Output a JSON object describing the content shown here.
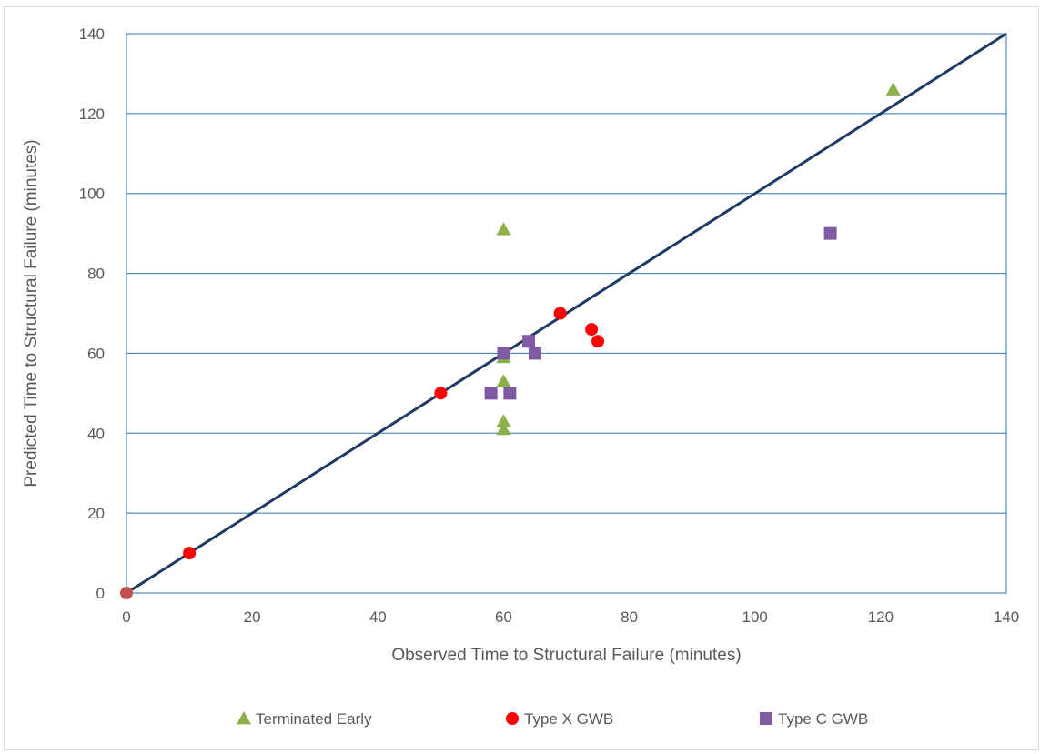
{
  "chart_data": {
    "type": "scatter",
    "title": "",
    "xlabel": "Observed Time to Structural Failure (minutes)",
    "ylabel": "Predicted Time to Structural Failure (minutes)",
    "xlim": [
      0,
      140
    ],
    "ylim": [
      0,
      140
    ],
    "x_ticks": [
      "0",
      "20",
      "40",
      "60",
      "80",
      "100",
      "120",
      "140"
    ],
    "y_ticks": [
      "0",
      "20",
      "40",
      "60",
      "80",
      "100",
      "120",
      "140"
    ],
    "grid": "horizontal",
    "legend_position": "bottom",
    "reference_line": {
      "from": [
        0,
        0
      ],
      "to": [
        140,
        140
      ],
      "color": "#1f3b64"
    },
    "series": [
      {
        "name": "Terminated Early",
        "marker": "triangle",
        "color": "#8db04a",
        "points": [
          [
            60,
            91
          ],
          [
            60,
            59
          ],
          [
            60,
            53
          ],
          [
            60,
            43
          ],
          [
            60,
            41
          ],
          [
            122,
            126
          ]
        ]
      },
      {
        "name": "Type X GWB",
        "marker": "circle",
        "color": "#ff0000",
        "points": [
          [
            0,
            0
          ],
          [
            10,
            10
          ],
          [
            50,
            50
          ],
          [
            69,
            70
          ],
          [
            74,
            66
          ],
          [
            75,
            63
          ]
        ]
      },
      {
        "name": "Type C GWB",
        "marker": "square",
        "color": "#7f5ba3",
        "points": [
          [
            58,
            50
          ],
          [
            61,
            50
          ],
          [
            60,
            60
          ],
          [
            64,
            63
          ],
          [
            65,
            60
          ],
          [
            112,
            90
          ]
        ]
      }
    ]
  }
}
